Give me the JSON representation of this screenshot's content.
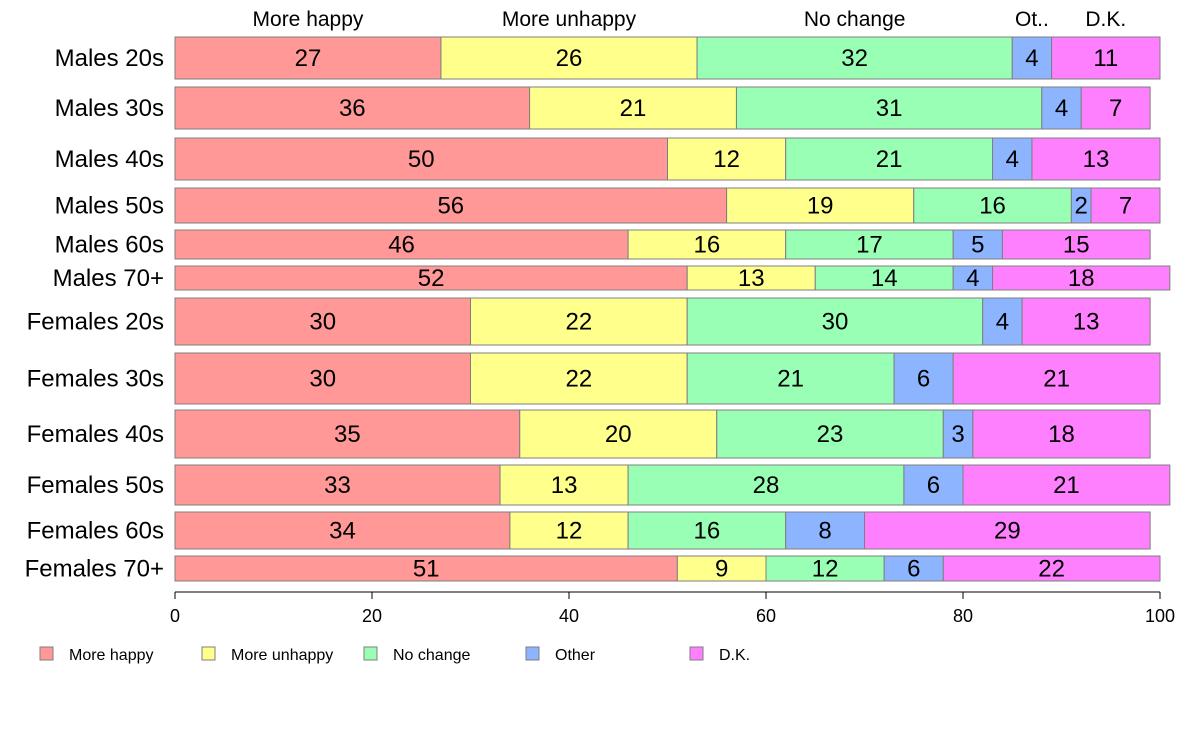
{
  "chart_data": {
    "type": "bar",
    "orientation": "horizontal-stacked",
    "title": "",
    "xlabel": "",
    "ylabel": "",
    "xlim": [
      0,
      100
    ],
    "x_ticks": [
      "0",
      "20",
      "40",
      "60",
      "80",
      "100"
    ],
    "grid": false,
    "legend_position": "bottom-left",
    "top_labels": [
      "More happy",
      "More unhappy",
      "No change",
      "Ot..",
      "D.K."
    ],
    "categories": [
      "Males 20s",
      "Males 30s",
      "Males 40s",
      "Males 50s",
      "Males 60s",
      "Males 70+",
      "Females 20s",
      "Females 30s",
      "Females 40s",
      "Females 50s",
      "Females 60s",
      "Females 70+"
    ],
    "series": [
      {
        "name": "More happy",
        "color": "#ff9896",
        "values": [
          27,
          36,
          50,
          56,
          46,
          52,
          30,
          30,
          35,
          33,
          34,
          51
        ]
      },
      {
        "name": "More unhappy",
        "color": "#ffff8c",
        "values": [
          26,
          21,
          12,
          19,
          16,
          13,
          22,
          22,
          20,
          13,
          12,
          9
        ]
      },
      {
        "name": "No change",
        "color": "#98ffb4",
        "values": [
          32,
          31,
          21,
          16,
          17,
          14,
          30,
          21,
          23,
          28,
          16,
          12
        ]
      },
      {
        "name": "Other",
        "color": "#8cb4ff",
        "values": [
          4,
          4,
          4,
          2,
          5,
          4,
          4,
          6,
          3,
          6,
          8,
          6
        ]
      },
      {
        "name": "D.K.",
        "color": "#ff80ff",
        "values": [
          11,
          7,
          13,
          7,
          15,
          18,
          13,
          21,
          18,
          21,
          29,
          22
        ]
      }
    ]
  }
}
